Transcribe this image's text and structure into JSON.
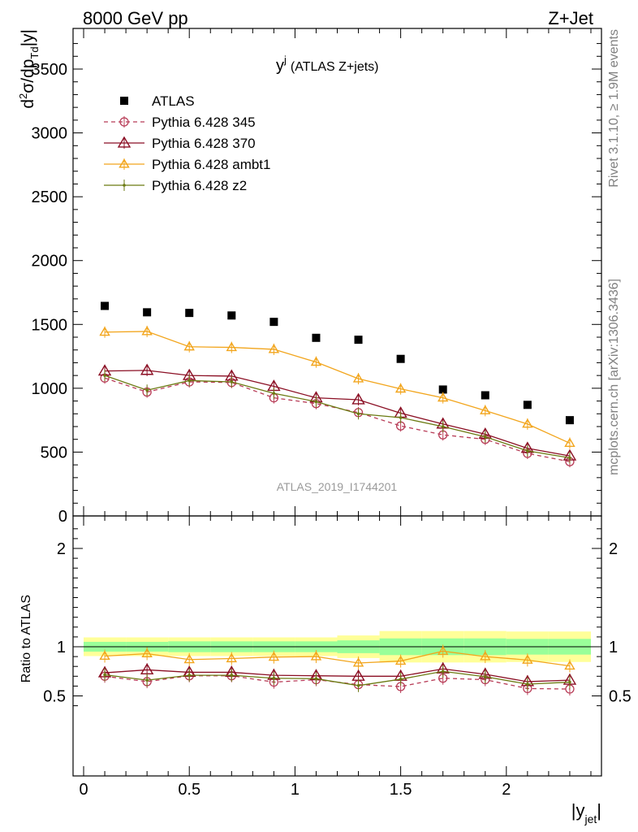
{
  "header": {
    "left": "8000 GeV pp",
    "right": "Z+Jet"
  },
  "side_labels": {
    "rivet": "Rivet 3.1.10, ≥ 1.9M events",
    "mcplots": "mcplots.cern.ch [arXiv:1306.3436]"
  },
  "watermark": "ATLAS_2019_I1744201",
  "chart_data": [
    {
      "type": "scatter",
      "title": "y^j (ATLAS Z+jets)",
      "title_main": "y",
      "title_sup": "j",
      "title_rest": "(ATLAS Z+jets)",
      "ylabel": "d²σ/dp_Td|y|",
      "ylim": [
        0,
        3800
      ],
      "xlim": [
        -0.05,
        2.45
      ],
      "yticks": [
        0,
        500,
        1000,
        1500,
        2000,
        2500,
        3000,
        3500
      ],
      "x": [
        0.1,
        0.3,
        0.5,
        0.7,
        0.9,
        1.1,
        1.3,
        1.5,
        1.7,
        1.9,
        2.1,
        2.3
      ],
      "series": [
        {
          "name": "ATLAS",
          "color": "#000000",
          "marker": "square",
          "line": "none",
          "values": [
            1645,
            1595,
            1590,
            1570,
            1520,
            1395,
            1380,
            1230,
            990,
            945,
            870,
            750
          ]
        },
        {
          "name": "Pythia 6.428 345",
          "color": "#b83c57",
          "marker": "circle-open",
          "line": "dashed",
          "values": [
            1080,
            970,
            1050,
            1045,
            925,
            880,
            810,
            705,
            635,
            600,
            490,
            425
          ]
        },
        {
          "name": "Pythia 6.428 370",
          "color": "#8b0f24",
          "marker": "triangle-open",
          "line": "solid",
          "values": [
            1135,
            1140,
            1100,
            1095,
            1015,
            925,
            910,
            805,
            720,
            640,
            530,
            470
          ]
        },
        {
          "name": "Pythia 6.428 ambt1",
          "color": "#f2a51c",
          "marker": "triangle-open",
          "line": "solid",
          "values": [
            1440,
            1445,
            1325,
            1320,
            1305,
            1205,
            1075,
            995,
            925,
            825,
            720,
            570
          ]
        },
        {
          "name": "Pythia 6.428 z2",
          "color": "#6b7a12",
          "marker": "dot",
          "line": "solid",
          "values": [
            1100,
            985,
            1060,
            1050,
            960,
            895,
            800,
            770,
            700,
            620,
            510,
            455
          ]
        }
      ],
      "legend": "top-left"
    },
    {
      "type": "scatter",
      "ylabel": "Ratio to ATLAS",
      "xlabel": "|y_jet|",
      "ylim": [
        0.34,
        2.3
      ],
      "yticks": [
        0.5,
        1,
        2
      ],
      "xlim": [
        -0.05,
        2.45
      ],
      "xticks": [
        0,
        0.5,
        1,
        1.5,
        2
      ],
      "x": [
        0.1,
        0.3,
        0.5,
        0.7,
        0.9,
        1.1,
        1.3,
        1.5,
        1.7,
        1.9,
        2.1,
        2.3
      ],
      "bins": [
        0,
        0.2,
        0.4,
        0.6,
        0.8,
        1.0,
        1.2,
        1.4,
        1.6,
        1.8,
        2.0,
        2.2,
        2.4
      ],
      "uncertainty_bands": {
        "inner_color": "#99ff99",
        "outer_color": "#ffff99",
        "inner_half_width": [
          0.05,
          0.05,
          0.055,
          0.055,
          0.055,
          0.055,
          0.065,
          0.085,
          0.085,
          0.085,
          0.08,
          0.08,
          0.08
        ],
        "outer_half_width": [
          0.095,
          0.095,
          0.095,
          0.095,
          0.095,
          0.095,
          0.115,
          0.16,
          0.16,
          0.16,
          0.155,
          0.155,
          0.155
        ]
      },
      "series": [
        {
          "name": "Pythia 6.428 345",
          "color": "#b83c57",
          "values": [
            0.7,
            0.645,
            0.705,
            0.705,
            0.64,
            0.665,
            0.615,
            0.595,
            0.68,
            0.665,
            0.575,
            0.57
          ]
        },
        {
          "name": "Pythia 6.428 370",
          "color": "#8b0f24",
          "values": [
            0.735,
            0.765,
            0.74,
            0.74,
            0.71,
            0.705,
            0.7,
            0.7,
            0.775,
            0.72,
            0.645,
            0.66
          ]
        },
        {
          "name": "Pythia 6.428 ambt1",
          "color": "#f2a51c",
          "values": [
            0.905,
            0.93,
            0.87,
            0.88,
            0.895,
            0.9,
            0.835,
            0.855,
            0.955,
            0.9,
            0.865,
            0.805
          ]
        },
        {
          "name": "Pythia 6.428 z2",
          "color": "#6b7a12",
          "values": [
            0.715,
            0.66,
            0.71,
            0.71,
            0.68,
            0.675,
            0.605,
            0.67,
            0.75,
            0.695,
            0.62,
            0.64
          ]
        }
      ]
    }
  ]
}
